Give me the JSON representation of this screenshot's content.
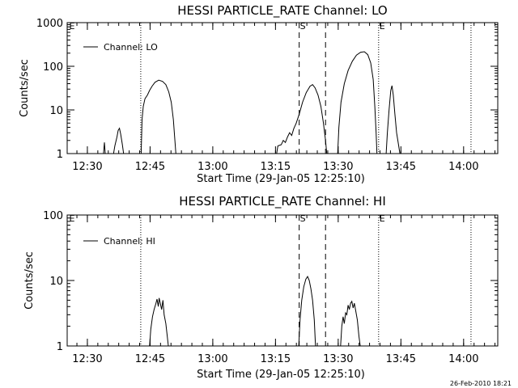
{
  "footer_date": "26-Feb-2010 18:21",
  "chart_data": [
    {
      "type": "line",
      "title": "HESSI PARTICLE_RATE Channel: LO",
      "xlabel": "Start Time (29-Jan-05 12:25:10)",
      "ylabel": "Counts/sec",
      "x_unit": "minutes after 12:25:10",
      "y_scale": "log",
      "xlim": [
        0,
        103
      ],
      "ylim": [
        1,
        1000
      ],
      "yticks": [
        1,
        10,
        100,
        1000
      ],
      "ytick_labels": [
        "1",
        "10",
        "100",
        "1000"
      ],
      "xticks": [
        4.83,
        19.83,
        34.83,
        49.83,
        64.83,
        79.83,
        94.83
      ],
      "xtick_labels": [
        "12:30",
        "12:45",
        "13:00",
        "13:15",
        "13:30",
        "13:45",
        "14:00"
      ],
      "legend": {
        "position": "top-left",
        "entries": [
          "Channel: LO"
        ]
      },
      "markers": [
        {
          "x": 17.6,
          "style": "dotted",
          "label": ""
        },
        {
          "x": 55.5,
          "style": "dashed",
          "label": "S"
        },
        {
          "x": 61.8,
          "style": "dashed",
          "label": ""
        },
        {
          "x": 74.5,
          "style": "dotted",
          "label": "E"
        },
        {
          "x": 96.6,
          "style": "dotted",
          "label": ""
        },
        {
          "x": 0.3,
          "style": "none",
          "label": "E"
        }
      ],
      "series": [
        {
          "segments": [
            [
              [
                8.7,
                1
              ],
              [
                8.9,
                1.8
              ],
              [
                9.1,
                1
              ]
            ],
            [
              [
                11.1,
                1
              ],
              [
                11.4,
                1.5
              ],
              [
                11.9,
                2.4
              ],
              [
                12.2,
                3.4
              ],
              [
                12.5,
                3.8
              ],
              [
                12.8,
                2.8
              ],
              [
                13.2,
                1.6
              ],
              [
                13.5,
                1
              ]
            ],
            [
              [
                17.7,
                1
              ],
              [
                17.9,
                6
              ],
              [
                18.2,
                12
              ],
              [
                18.6,
                18
              ],
              [
                19.2,
                22
              ],
              [
                19.7,
                28
              ],
              [
                20.3,
                35
              ],
              [
                21,
                43
              ],
              [
                21.9,
                48
              ],
              [
                22.8,
                45
              ],
              [
                23.6,
                38
              ],
              [
                24.3,
                26
              ],
              [
                24.9,
                15
              ],
              [
                25.4,
                6
              ],
              [
                25.7,
                2.5
              ],
              [
                26,
                1
              ]
            ],
            [
              [
                50.1,
                1
              ],
              [
                50.4,
                1.5
              ],
              [
                51.2,
                1.6
              ],
              [
                51.7,
                2
              ],
              [
                52.2,
                1.8
              ],
              [
                52.7,
                2.4
              ],
              [
                53.2,
                3
              ],
              [
                53.7,
                2.6
              ],
              [
                54.2,
                3.7
              ],
              [
                54.8,
                5
              ],
              [
                55.5,
                8
              ],
              [
                56.3,
                15
              ],
              [
                57.2,
                25
              ],
              [
                58.1,
                35
              ],
              [
                58.7,
                38
              ],
              [
                59.3,
                32
              ],
              [
                60,
                22
              ],
              [
                60.7,
                12
              ],
              [
                61.3,
                5
              ],
              [
                61.8,
                2
              ],
              [
                62.1,
                1
              ]
            ],
            [
              [
                64.7,
                1
              ],
              [
                65,
                4
              ],
              [
                65.5,
                15
              ],
              [
                66.3,
                40
              ],
              [
                67.2,
                80
              ],
              [
                68.2,
                130
              ],
              [
                69.2,
                180
              ],
              [
                70.2,
                210
              ],
              [
                71.1,
                215
              ],
              [
                71.9,
                185
              ],
              [
                72.6,
                120
              ],
              [
                73.2,
                50
              ],
              [
                73.6,
                12
              ],
              [
                73.9,
                3
              ],
              [
                74.1,
                1
              ]
            ],
            [
              [
                76.3,
                1
              ],
              [
                76.6,
                3
              ],
              [
                77,
                10
              ],
              [
                77.4,
                28
              ],
              [
                77.7,
                36
              ],
              [
                78,
                22
              ],
              [
                78.4,
                8
              ],
              [
                78.8,
                3
              ],
              [
                79.3,
                1.5
              ],
              [
                79.6,
                1
              ]
            ]
          ]
        }
      ]
    },
    {
      "type": "line",
      "title": "HESSI PARTICLE_RATE Channel: HI",
      "xlabel": "Start Time (29-Jan-05 12:25:10)",
      "ylabel": "Counts/sec",
      "x_unit": "minutes after 12:25:10",
      "y_scale": "log",
      "xlim": [
        0,
        103
      ],
      "ylim": [
        1,
        100
      ],
      "yticks": [
        1,
        10,
        100
      ],
      "ytick_labels": [
        "1",
        "10",
        "100"
      ],
      "xticks": [
        4.83,
        19.83,
        34.83,
        49.83,
        64.83,
        79.83,
        94.83
      ],
      "xtick_labels": [
        "12:30",
        "12:45",
        "13:00",
        "13:15",
        "13:30",
        "13:45",
        "14:00"
      ],
      "legend": {
        "position": "top-left",
        "entries": [
          "Channel: HI"
        ]
      },
      "markers": [
        {
          "x": 17.6,
          "style": "dotted",
          "label": ""
        },
        {
          "x": 55.5,
          "style": "dashed",
          "label": "S"
        },
        {
          "x": 61.8,
          "style": "dashed",
          "label": ""
        },
        {
          "x": 74.5,
          "style": "dotted",
          "label": "E"
        },
        {
          "x": 96.6,
          "style": "dotted",
          "label": ""
        },
        {
          "x": 0.3,
          "style": "none",
          "label": "E"
        }
      ],
      "series": [
        {
          "segments": [
            [
              [
                19.7,
                1
              ],
              [
                20,
                1.8
              ],
              [
                20.4,
                2.8
              ],
              [
                20.8,
                3.6
              ],
              [
                21.2,
                4.4
              ],
              [
                21.5,
                5.2
              ],
              [
                21.8,
                4
              ],
              [
                22,
                5.4
              ],
              [
                22.3,
                4.4
              ],
              [
                22.6,
                3.6
              ],
              [
                22.9,
                5
              ],
              [
                23.2,
                3
              ],
              [
                23.6,
                2.2
              ],
              [
                23.9,
                1.5
              ],
              [
                24.2,
                1
              ]
            ],
            [
              [
                55.4,
                1
              ],
              [
                55.7,
                2.5
              ],
              [
                56.1,
                5
              ],
              [
                56.6,
                8
              ],
              [
                57.1,
                10.5
              ],
              [
                57.5,
                11.5
              ],
              [
                57.9,
                10
              ],
              [
                58.3,
                7.5
              ],
              [
                58.7,
                5
              ],
              [
                59.1,
                2.5
              ],
              [
                59.4,
                1
              ]
            ],
            [
              [
                65.4,
                1
              ],
              [
                65.7,
                2
              ],
              [
                66,
                2.8
              ],
              [
                66.3,
                2.2
              ],
              [
                66.6,
                3.2
              ],
              [
                66.9,
                3
              ],
              [
                67.2,
                4.2
              ],
              [
                67.5,
                3.6
              ],
              [
                67.8,
                4.5
              ],
              [
                68.1,
                4.8
              ],
              [
                68.4,
                3.8
              ],
              [
                68.7,
                4.5
              ],
              [
                69,
                3.5
              ],
              [
                69.4,
                2.5
              ],
              [
                69.8,
                1.4
              ],
              [
                70.1,
                1
              ]
            ]
          ]
        }
      ]
    }
  ]
}
